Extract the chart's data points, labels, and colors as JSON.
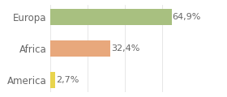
{
  "categories": [
    "America",
    "Africa",
    "Europa"
  ],
  "values": [
    2.7,
    32.4,
    64.9
  ],
  "labels": [
    "2,7%",
    "32,4%",
    "64,9%"
  ],
  "bar_colors": [
    "#e8d44d",
    "#e8a87c",
    "#a8c080"
  ],
  "background_color": "#ffffff",
  "xlim": [
    0,
    80
  ],
  "label_fontsize": 8,
  "tick_fontsize": 8.5,
  "bar_height": 0.5,
  "grid_color": "#dddddd",
  "text_color": "#666666"
}
